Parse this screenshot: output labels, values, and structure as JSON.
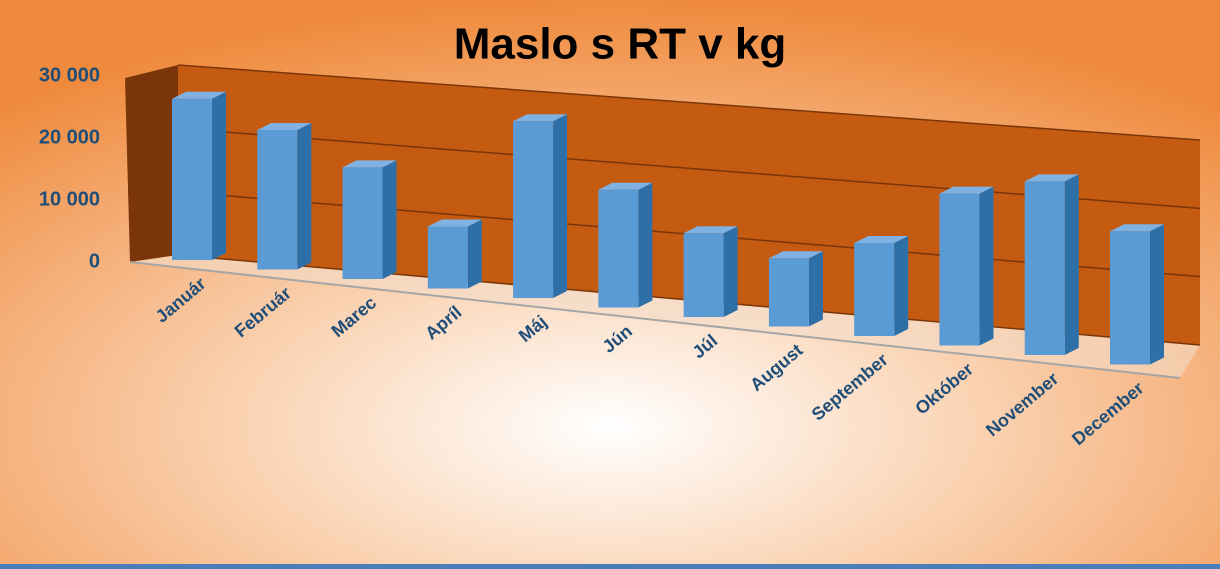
{
  "chart_data": {
    "type": "bar3d",
    "title": "Maslo s RT v kg",
    "categories": [
      "Január",
      "Február",
      "Marec",
      "Apríl",
      "Máj",
      "Jún",
      "Júl",
      "August",
      "September",
      "Október",
      "November",
      "December"
    ],
    "values": [
      26000,
      22500,
      18000,
      10000,
      28500,
      19000,
      13500,
      11000,
      15000,
      24500,
      28000,
      21500
    ],
    "color": "#5b9bd5",
    "ylim": [
      0,
      30000
    ],
    "yticks": [
      0,
      {
        "value": 10000,
        "label": "10 000"
      },
      {
        "value": 20000,
        "label": "20 000"
      },
      {
        "value": 30000,
        "label": "30 000"
      }
    ],
    "grid": true
  }
}
